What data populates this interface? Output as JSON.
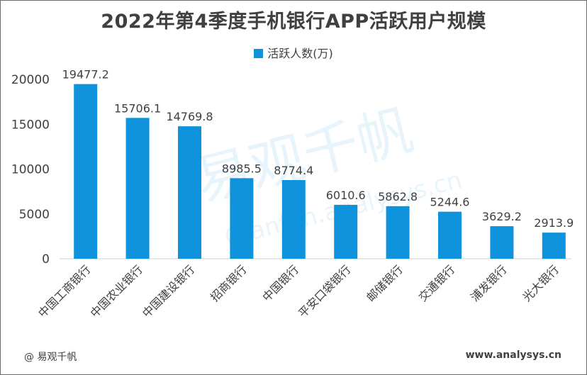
{
  "chart_data": {
    "type": "bar",
    "title": "2022年第4季度手机银行APP活跃用户规模",
    "legend": "活跃人数(万)",
    "categories": [
      "中国工商银行",
      "中国农业银行",
      "中国建设银行",
      "招商银行",
      "中国银行",
      "平安口袋银行",
      "邮储银行",
      "交通银行",
      "浦发银行",
      "光大银行"
    ],
    "series": [
      {
        "name": "活跃人数(万)",
        "values": [
          19477.2,
          15706.1,
          14769.8,
          8985.5,
          8774.4,
          6010.6,
          5862.8,
          5244.6,
          3629.2,
          2913.9
        ]
      }
    ],
    "value_labels": [
      "19477.2",
      "15706.1",
      "14769.8",
      "8985.5",
      "8774.4",
      "6010.6",
      "5862.8",
      "5244.6",
      "3629.2",
      "2913.9"
    ],
    "yticks": [
      "0",
      "5000",
      "10000",
      "15000",
      "20000"
    ],
    "ylim": [
      0,
      20000
    ],
    "grid": false,
    "bar_color": "#0e92dc"
  },
  "footer": {
    "brand": "@ 易观千帆",
    "url": "www.analysys.cn"
  },
  "watermark": {
    "text": "易观千帆",
    "subtext": "Qianfan.analysys.cn"
  }
}
